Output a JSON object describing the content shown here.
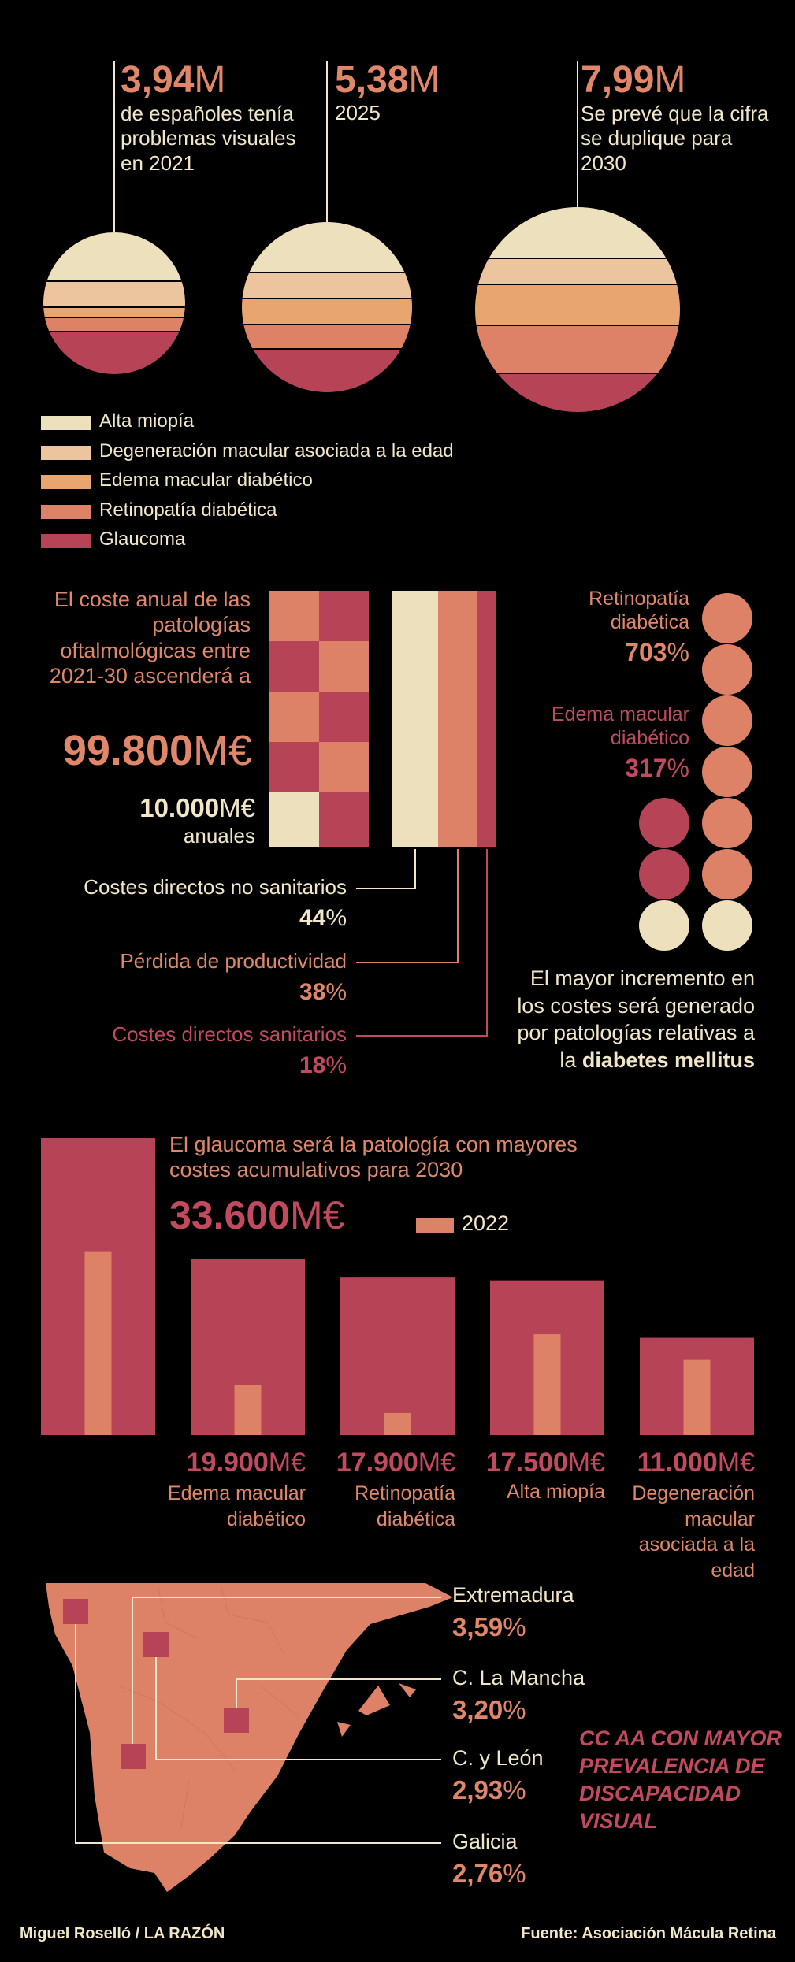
{
  "colors": {
    "background": "#000000",
    "alta_miopia": "#ede0bd",
    "degeneracion": "#ecc49d",
    "edema": "#e9a56f",
    "retinopatia": "#dd8266",
    "glaucoma": "#b64456",
    "text_cream": "#f2e6c9",
    "text_orange": "#e0876a",
    "text_red": "#c24a5e"
  },
  "circles": [
    {
      "value_num": "3,94",
      "value_unit": "M",
      "caption": "de españoles tenía problemas visuales en 2021"
    },
    {
      "value_num": "5,38",
      "value_unit": "M",
      "caption": "2025"
    },
    {
      "value_num": "7,99",
      "value_unit": "M",
      "caption": "Se prevé que la cifra se duplique para 2030"
    }
  ],
  "legend": [
    "Alta miopía",
    "Degeneración macular asociada a la edad",
    "Edema macular diabético",
    "Retinopatía diabética",
    "Glaucoma"
  ],
  "costs": {
    "intro": "El coste anual de las patologías oftalmológicas entre 2021-30 ascenderá a",
    "total_num": "99.800",
    "total_unit": "M€",
    "annual_num": "10.000",
    "annual_unit": "M€",
    "annual_label": "anuales",
    "breakdown": [
      {
        "label": "Costes directos no sanitarios",
        "num": "44",
        "unit": "%"
      },
      {
        "label": "Pérdida de productividad",
        "num": "38",
        "unit": "%"
      },
      {
        "label": "Costes directos sanitarios",
        "num": "18",
        "unit": "%"
      }
    ]
  },
  "increments": {
    "retinopatia_label": "Retinopatía diabética",
    "retinopatia_num": "703",
    "edema_label": "Edema macular diabético",
    "edema_num": "317",
    "unit": "%",
    "note_pre": "El mayor incremento en los costes será generado por patologías relativas a la",
    "note_bold": "diabetes mellitus"
  },
  "glaucoma_section": {
    "headline": "El glaucoma será la patología con mayores costes acumulativos para 2030",
    "top_num": "33.600",
    "top_unit": "M€",
    "legend_2022": "2022"
  },
  "chart_data": [
    {
      "type": "pie",
      "title": "",
      "categories": [
        "Año 2021",
        "Año 2025",
        "Año 2030"
      ],
      "totals_millions": [
        3.94,
        5.38,
        7.99
      ],
      "series_names": [
        "Alta miopía",
        "Degeneración macular asociada a la edad",
        "Edema macular diabético",
        "Retinopatía diabética",
        "Glaucoma"
      ]
    },
    {
      "type": "bar",
      "title": "El glaucoma será la patología con mayores costes acumulativos para 2030",
      "categories": [
        "Glaucoma",
        "Edema macular diabético",
        "Retinopatía diabética",
        "Alta miopía",
        "Degeneración macular asociada a la edad"
      ],
      "series": [
        {
          "name": "2030",
          "values": [
            33600,
            19900,
            17900,
            17500,
            11000
          ],
          "labels": [
            "33.600",
            "19.900",
            "17.900",
            "17.500",
            "11.000"
          ]
        },
        {
          "name": "2022",
          "values": [
            20800,
            5700,
            2500,
            11400,
            8500
          ]
        }
      ],
      "unit": "M€",
      "ylabel": ""
    },
    {
      "type": "table",
      "title": "CC AA CON MAYOR PREVALENCIA DE DISCAPACIDAD VISUAL",
      "rows": [
        {
          "region": "Extremadura",
          "num": "3,59",
          "unit": "%"
        },
        {
          "region": "C. La Mancha",
          "num": "3,20",
          "unit": "%"
        },
        {
          "region": "C. y León",
          "num": "2,93",
          "unit": "%"
        },
        {
          "region": "Galicia",
          "num": "2,76",
          "unit": "%"
        }
      ]
    }
  ],
  "footer": {
    "author": "Miguel Roselló / LA RAZÓN",
    "source": "Fuente: Asociación Mácula Retina"
  }
}
